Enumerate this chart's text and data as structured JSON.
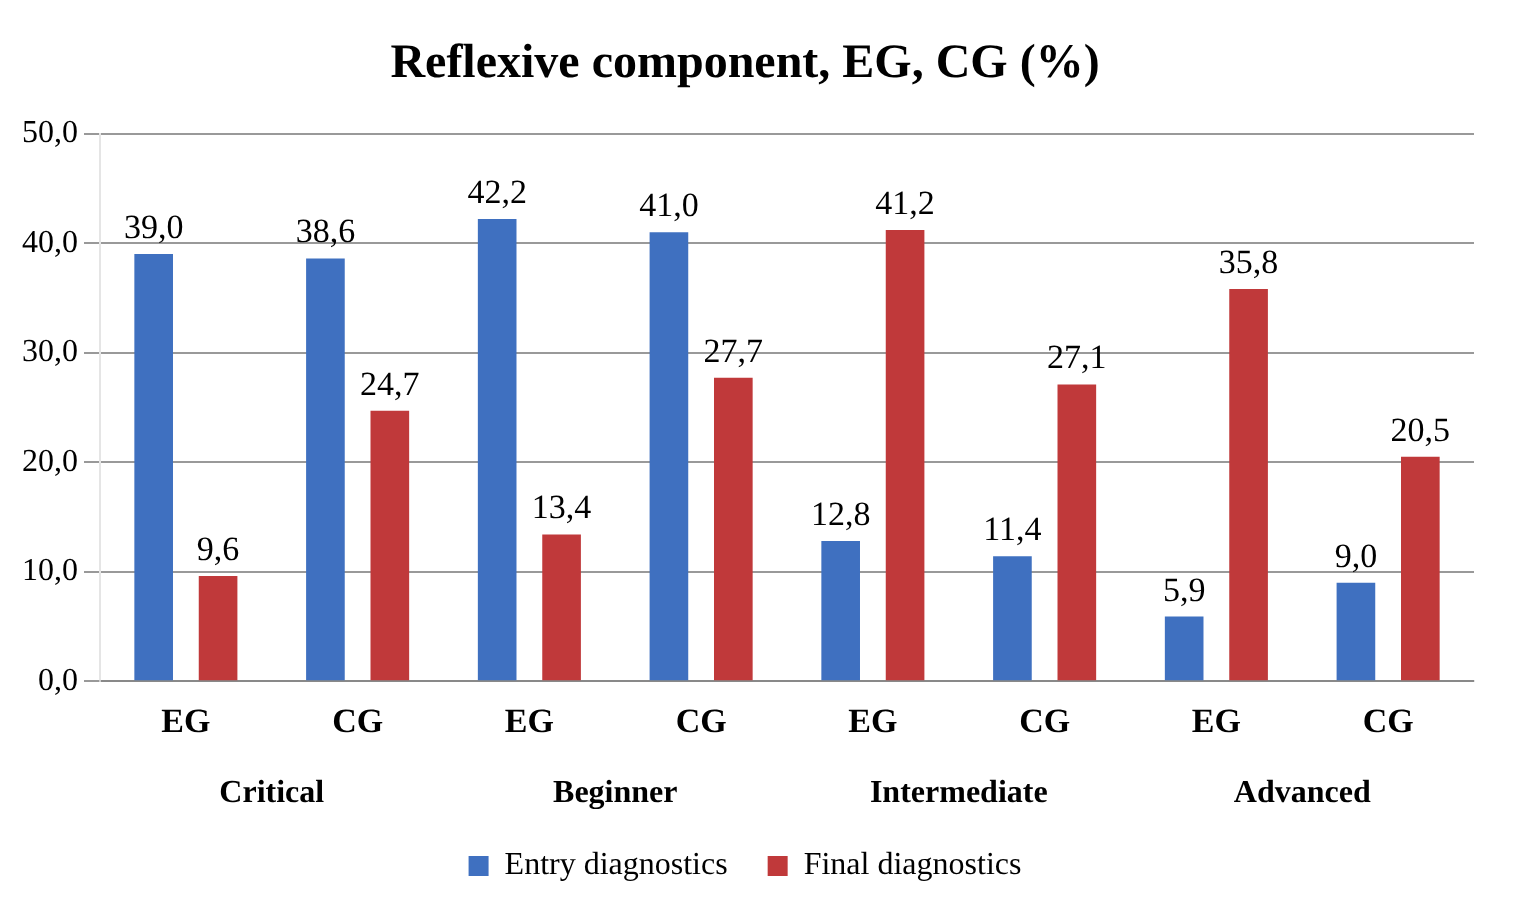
{
  "chart_data": {
    "type": "bar",
    "title": "Reflexive component, EG, CG (%)",
    "categories": [
      "EG",
      "CG",
      "EG",
      "CG",
      "EG",
      "CG",
      "EG",
      "CG"
    ],
    "series": [
      {
        "name": "Entry diagnostics",
        "color": "#3f70c0",
        "values": [
          39.0,
          38.6,
          42.2,
          41.0,
          12.8,
          11.4,
          5.9,
          9.0
        ],
        "value_labels": [
          "39,0",
          "38,6",
          "42,2",
          "41,0",
          "12,8",
          "11,4",
          "5,9",
          "9,0"
        ]
      },
      {
        "name": "Final diagnostics",
        "color": "#c0393a",
        "values": [
          9.6,
          24.7,
          13.4,
          27.7,
          41.2,
          27.1,
          35.8,
          20.5
        ],
        "value_labels": [
          "9,6",
          "24,7",
          "13,4",
          "27,7",
          "41,2",
          "27,1",
          "35,8",
          "20,5"
        ]
      }
    ],
    "ylim": [
      0,
      50
    ],
    "yticks": [
      {
        "value": 0,
        "label": "0,0"
      },
      {
        "value": 10,
        "label": "10,0"
      },
      {
        "value": 20,
        "label": "20,0"
      },
      {
        "value": 30,
        "label": "30,0"
      },
      {
        "value": 40,
        "label": "40,0"
      },
      {
        "value": 50,
        "label": "50,0"
      }
    ],
    "annotations": [
      "Critical",
      "Beginner",
      "Intermediate",
      "Advanced"
    ],
    "grid": "y",
    "legend": "bottom"
  }
}
